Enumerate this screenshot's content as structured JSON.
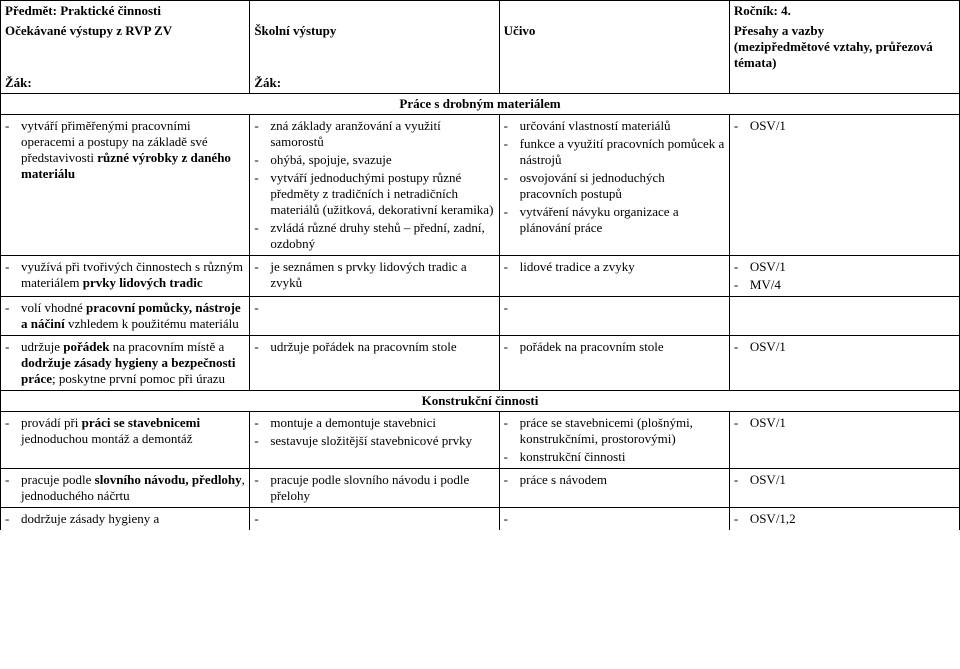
{
  "header": {
    "subject_label": "Předmět:",
    "subject_value": "Praktické činnosti",
    "grade_label": "Ročník:",
    "grade_value": "4.",
    "col1_title": "Očekávané výstupy z RVP ZV",
    "col2_title": "Školní výstupy",
    "col3_title": "Učivo",
    "col4_title_line1": "Přesahy a vazby",
    "col4_title_line2": "(mezipředmětové vztahy, průřezová témata)",
    "zak": "Žák:"
  },
  "sections": {
    "s1_title": "Práce s drobným materiálem",
    "s2_title": "Konstrukční činnosti"
  },
  "rows": {
    "r1": {
      "c1_prefix": "vytváří přiměřenými pracovními operacemi a postupy na základě své představivosti ",
      "c1_bold": "různé výrobky z daného materiálu",
      "c2": [
        "zná základy aranžování a využití samorostů",
        "ohýbá, spojuje, svazuje",
        "vytváří jednoduchými postupy různé předměty z tradičních i netradičních materiálů (užitková, dekorativní keramika)",
        "zvládá různé druhy stehů – přední, zadní, ozdobný"
      ],
      "c3": [
        "určování vlastností materiálů",
        "funkce a využití pracovních pomůcek a nástrojů",
        "osvojování si jednoduchých pracovních postupů",
        "vytváření návyku organizace a plánování práce"
      ],
      "c4": [
        "OSV/1"
      ]
    },
    "r2": {
      "c1_prefix": "využívá při tvořivých činnostech s různým materiálem ",
      "c1_bold": "prvky lidových tradic",
      "c2": [
        "je seznámen s prvky lidových tradic a zvyků"
      ],
      "c3": [
        "lidové tradice a zvyky"
      ],
      "c4": [
        "OSV/1",
        "MV/4"
      ]
    },
    "r3": {
      "c1_a": "volí vhodné ",
      "c1_bold": "pracovní pomůcky, nástroje a náčiní",
      "c1_b": " vzhledem k použitému materiálu"
    },
    "r4": {
      "c1_a": "udržuje ",
      "c1_b1": "pořádek",
      "c1_c": " na pracovním místě a ",
      "c1_b2": "dodržuje zásady hygieny a bezpečnosti práce",
      "c1_d": "; poskytne první pomoc při úrazu",
      "c2": [
        "udržuje pořádek na pracovním stole"
      ],
      "c3": [
        "pořádek na pracovním stole"
      ],
      "c4": [
        "OSV/1"
      ]
    },
    "r5": {
      "c1_a": "provádí při ",
      "c1_bold": "práci se stavebnicemi",
      "c1_b": " jednoduchou montáž a demontáž",
      "c2": [
        "montuje a demontuje stavebnici",
        "sestavuje složitější stavebnicové prvky"
      ],
      "c3": [
        "práce se stavebnicemi (plošnými, konstrukčními, prostorovými)",
        "konstrukční činnosti"
      ],
      "c4": [
        "OSV/1"
      ]
    },
    "r6": {
      "c1_a": "pracuje podle ",
      "c1_bold": "slovního návodu, předlohy",
      "c1_b": ", jednoduchého náčrtu",
      "c2": [
        "pracuje podle slovního návodu i podle přelohy"
      ],
      "c3": [
        "práce s návodem"
      ],
      "c4": [
        "OSV/1"
      ]
    },
    "r7": {
      "c1": "dodržuje zásady hygieny a",
      "c4": [
        "OSV/1,2"
      ]
    }
  }
}
